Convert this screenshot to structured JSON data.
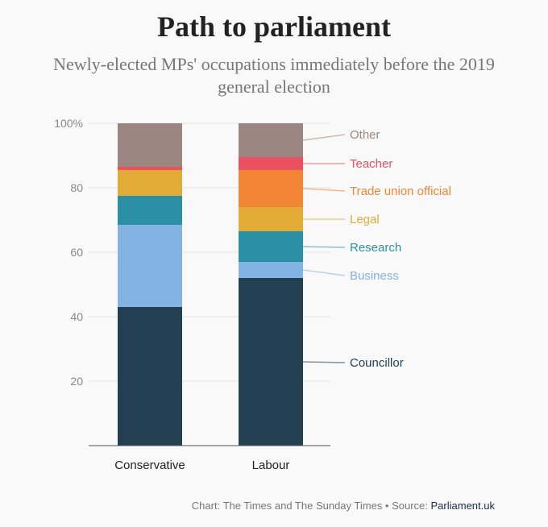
{
  "title": "Path to parliament",
  "subtitle": "Newly-elected MPs' occupations immediately before the 2019 general election",
  "footer": {
    "credit": "Chart: The Times and The Sunday Times • Source: ",
    "source_link": "Parliament.uk"
  },
  "chart_data": {
    "type": "bar",
    "stacked": true,
    "title": "Path to parliament",
    "subtitle": "Newly-elected MPs' occupations immediately before the 2019 general election",
    "xlabel": "",
    "ylabel": "",
    "ylim": [
      0,
      100
    ],
    "yticks": [
      20,
      40,
      60,
      80,
      100
    ],
    "ytick_labels": [
      "20",
      "40",
      "60",
      "80",
      "100%"
    ],
    "grid": true,
    "legend": "right, inline labels",
    "categories": [
      "Conservative",
      "Labour"
    ],
    "series": [
      {
        "name": "Councillor",
        "color": "#233f52",
        "values": [
          43,
          52
        ]
      },
      {
        "name": "Business",
        "color": "#82b3e3",
        "values": [
          25.5,
          5
        ]
      },
      {
        "name": "Research",
        "color": "#2c90a4",
        "values": [
          9,
          9.5
        ]
      },
      {
        "name": "Legal",
        "color": "#e1ab35",
        "values": [
          8,
          7.5
        ]
      },
      {
        "name": "Trade union official",
        "color": "#f28535",
        "values": [
          0,
          11.5
        ]
      },
      {
        "name": "Teacher",
        "color": "#eb5060",
        "values": [
          1,
          4
        ]
      },
      {
        "name": "Other",
        "color": "#9c8682",
        "values": [
          13.5,
          10.5
        ]
      }
    ]
  }
}
